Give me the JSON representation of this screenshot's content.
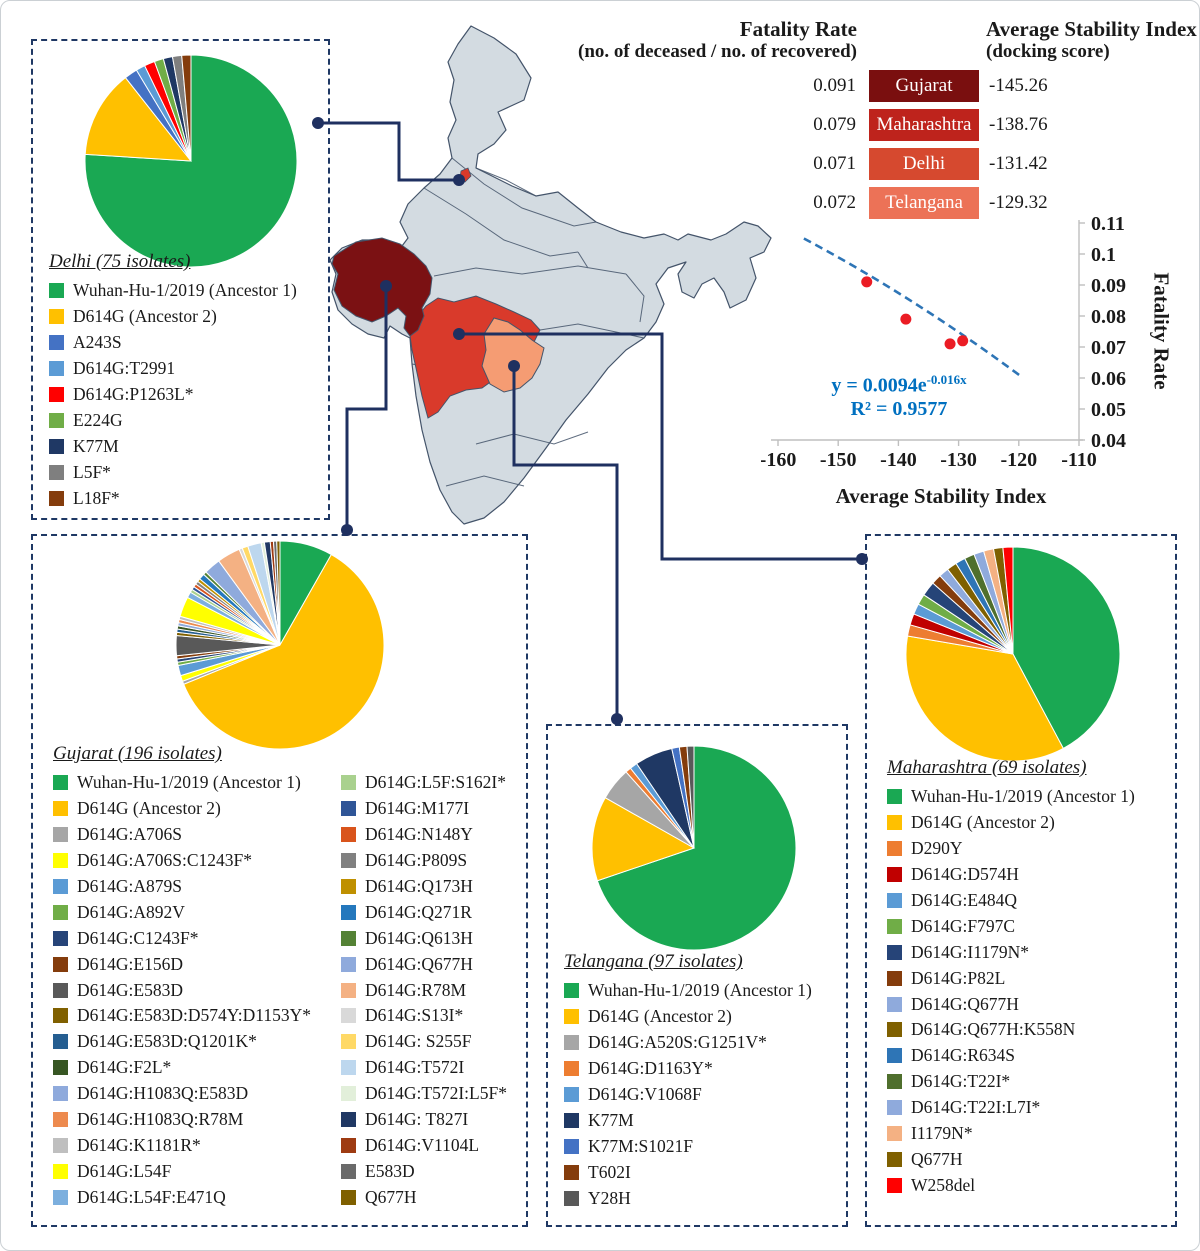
{
  "colors": {
    "box_dash": "#1f3864",
    "connector": "#1f3060",
    "equation_text": "#0070c0",
    "trend_line": "#2e75b6",
    "point_red": "#eb1c24",
    "axis_gray": "#bfbfbf",
    "text": "#1a1a1a"
  },
  "map": {
    "border_color": "#44546a",
    "state_colors": {
      "other": "#d3dbe1",
      "gujarat": "#7b1113",
      "maharashtra": "#d93a2b",
      "telangana": "#f59c73",
      "delhi": "#d93a2b"
    },
    "highlighted_states": [
      "Gujarat",
      "Maharashtra",
      "Delhi",
      "Telangana"
    ]
  },
  "table": {
    "col1_title": "Fatality Rate",
    "col1_subtitle": "(no. of deceased / no. of recovered)",
    "col2_title": "Average Stability Index",
    "col2_subtitle": "(docking score)",
    "rows": [
      {
        "fatality": "0.091",
        "state": "Gujarat",
        "stability": "-145.26",
        "chip_color": "#7a0f0f"
      },
      {
        "fatality": "0.079",
        "state": "Maharashtra",
        "stability": "-138.76",
        "chip_color": "#be231c"
      },
      {
        "fatality": "0.071",
        "state": "Delhi",
        "stability": "-131.42",
        "chip_color": "#d6492f"
      },
      {
        "fatality": "0.072",
        "state": "Telangana",
        "stability": "-129.32",
        "chip_color": "#ec7257"
      }
    ]
  },
  "chart_data": [
    {
      "type": "scatter",
      "name": "fatality_vs_stability",
      "xlabel": "Average Stability Index",
      "ylabel": "Fatality Rate",
      "xlim": [
        -160,
        -110
      ],
      "ylim": [
        0.04,
        0.11
      ],
      "x_ticks": [
        "-160",
        "-150",
        "-140",
        "-130",
        "-120",
        "-110"
      ],
      "y_ticks": [
        "0.11",
        "0.1",
        "0.09",
        "0.08",
        "0.07",
        "0.06",
        "0.05",
        "0.04"
      ],
      "grid": false,
      "legend_position": "none",
      "point_color": "#eb1c24",
      "points": [
        {
          "x": -145.26,
          "y": 0.091,
          "label": "Gujarat"
        },
        {
          "x": -138.76,
          "y": 0.079,
          "label": "Maharashtra"
        },
        {
          "x": -131.42,
          "y": 0.071,
          "label": "Delhi"
        },
        {
          "x": -129.32,
          "y": 0.072,
          "label": "Telangana"
        }
      ],
      "trendline": {
        "base": "y = 0.0094e",
        "exponent": "-0.016x",
        "r_squared": "R² = 0.9577",
        "style": "dashed",
        "color": "#2e75b6"
      },
      "trend_points": [
        {
          "x": -155.7,
          "y": 0.105
        },
        {
          "x": -137.6,
          "y": 0.0845
        },
        {
          "x": -119.6,
          "y": 0.0605
        }
      ]
    },
    {
      "type": "pie",
      "name": "delhi",
      "title": "Delhi (75 isolates)",
      "slices": [
        {
          "label": "Wuhan-Hu-1/2019 (Ancestor 1)",
          "color": "#1aa853",
          "value": 76.0
        },
        {
          "label": "D614G (Ancestor 2)",
          "color": "#ffc000",
          "value": 13.4
        },
        {
          "label": "A243S",
          "color": "#4472c4",
          "value": 2.0
        },
        {
          "label": "D614G:T2991",
          "color": "#5b9bd5",
          "value": 1.4
        },
        {
          "label": "D614G:P1263L*",
          "color": "#ff0000",
          "value": 1.6
        },
        {
          "label": "E224G",
          "color": "#70ad47",
          "value": 1.4
        },
        {
          "label": "K77M",
          "color": "#1f3864",
          "value": 1.4
        },
        {
          "label": "L5F*",
          "color": "#7f7f7f",
          "value": 1.4
        },
        {
          "label": "L18F*",
          "color": "#843c0c",
          "value": 1.4
        }
      ]
    },
    {
      "type": "pie",
      "name": "gujarat",
      "title": "Gujarat (196 isolates)",
      "slices": [
        {
          "label": "Wuhan-Hu-1/2019 (Ancestor 1)",
          "color": "#1aa853",
          "value": 8.2
        },
        {
          "label": "D614G (Ancestor 2)",
          "color": "#ffc000",
          "value": 60.5
        },
        {
          "label": "D614G:A706S",
          "color": "#a6a6a6",
          "value": 0.5
        },
        {
          "label": "D614G:A706S:C1243F*",
          "color": "#ffff00",
          "value": 0.9
        },
        {
          "label": "D614G:A879S",
          "color": "#5b9bd5",
          "value": 1.6
        },
        {
          "label": "D614G:A892V",
          "color": "#70ad47",
          "value": 0.5
        },
        {
          "label": "D614G:C1243F*",
          "color": "#264478",
          "value": 0.5
        },
        {
          "label": "D614G:E156D",
          "color": "#843c0c",
          "value": 0.5
        },
        {
          "label": "D614G:E583D",
          "color": "#595959",
          "value": 3.1
        },
        {
          "label": "D614G:E583D:D574Y:D1153Y*",
          "color": "#806000",
          "value": 0.5
        },
        {
          "label": "D614G:E583D:Q1201K*",
          "color": "#255e91",
          "value": 0.5
        },
        {
          "label": "D614G:F2L*",
          "color": "#375623",
          "value": 0.5
        },
        {
          "label": "D614G:H1083Q:E583D",
          "color": "#8faadc",
          "value": 0.5
        },
        {
          "label": "D614G:H1083Q:R78M",
          "color": "#ed8a4e",
          "value": 0.5
        },
        {
          "label": "D614G:K1181R*",
          "color": "#bfbfbf",
          "value": 0.5
        },
        {
          "label": "D614G:L54F",
          "color": "#ffff00",
          "value": 3.1
        },
        {
          "label": "D614G:L54F:E471Q",
          "color": "#7cafde",
          "value": 0.9
        },
        {
          "label": "D614G:L5F:S162I*",
          "color": "#a9d18e",
          "value": 0.5
        },
        {
          "label": "D614G:M177I",
          "color": "#2f5597",
          "value": 0.5
        },
        {
          "label": "D614G:N148Y",
          "color": "#d9541c",
          "value": 0.5
        },
        {
          "label": "D614G:P809S",
          "color": "#808080",
          "value": 0.5
        },
        {
          "label": "D614G:Q173H",
          "color": "#bf9000",
          "value": 0.5
        },
        {
          "label": "D614G:Q271R",
          "color": "#2478bd",
          "value": 0.9
        },
        {
          "label": "D614G:Q613H",
          "color": "#548235",
          "value": 0.5
        },
        {
          "label": "D614G:Q677H",
          "color": "#8faadc",
          "value": 2.6
        },
        {
          "label": "D614G:R78M",
          "color": "#f4b183",
          "value": 3.6
        },
        {
          "label": "D614G:S13I*",
          "color": "#d9d9d9",
          "value": 0.5
        },
        {
          "label": "D614G: S255F",
          "color": "#ffd966",
          "value": 0.9
        },
        {
          "label": "D614G:T572I",
          "color": "#bdd7ee",
          "value": 2.1
        },
        {
          "label": "D614G:T572I:L5F*",
          "color": "#e2efda",
          "value": 0.5
        },
        {
          "label": "D614G: T827I",
          "color": "#203864",
          "value": 0.9
        },
        {
          "label": "D614G:V1104L",
          "color": "#9e3b12",
          "value": 0.5
        },
        {
          "label": "E583D",
          "color": "#6a6a6a",
          "value": 0.5
        },
        {
          "label": "Q677H",
          "color": "#7f6000",
          "value": 0.5
        }
      ]
    },
    {
      "type": "pie",
      "name": "telangana",
      "title": "Telangana (97 isolates)",
      "slices": [
        {
          "label": "Wuhan-Hu-1/2019 (Ancestor 1)",
          "color": "#1aa853",
          "value": 69.8
        },
        {
          "label": "D614G (Ancestor 2)",
          "color": "#ffc000",
          "value": 13.4
        },
        {
          "label": "D614G:A520S:G1251V*",
          "color": "#a6a6a6",
          "value": 5.2
        },
        {
          "label": "D614G:D1163Y*",
          "color": "#ed7d31",
          "value": 0.9
        },
        {
          "label": "D614G:V1068F",
          "color": "#5b9bd5",
          "value": 1.2
        },
        {
          "label": "K77M",
          "color": "#1f3864",
          "value": 6.0
        },
        {
          "label": "K77M:S1021F",
          "color": "#4472c4",
          "value": 1.2
        },
        {
          "label": "T602I",
          "color": "#843c0c",
          "value": 1.2
        },
        {
          "label": "Y28H",
          "color": "#595959",
          "value": 1.1
        }
      ]
    },
    {
      "type": "pie",
      "name": "maharashtra",
      "title": "Maharashtra (69 isolates)",
      "slices": [
        {
          "label": "Wuhan-Hu-1/2019 (Ancestor 1)",
          "color": "#1aa853",
          "value": 42.0
        },
        {
          "label": "D614G (Ancestor 2)",
          "color": "#ffc000",
          "value": 35.3
        },
        {
          "label": "D290Y",
          "color": "#ed7d31",
          "value": 1.7
        },
        {
          "label": "D614G:D574H",
          "color": "#c00000",
          "value": 1.7
        },
        {
          "label": "D614G:E484Q",
          "color": "#5b9bd5",
          "value": 1.6
        },
        {
          "label": "D614G:F797C",
          "color": "#70ad47",
          "value": 1.6
        },
        {
          "label": "D614G:I1179N*",
          "color": "#264478",
          "value": 2.2
        },
        {
          "label": "D614G:P82L",
          "color": "#843c0c",
          "value": 1.5
        },
        {
          "label": "D614G:Q677H",
          "color": "#8faadc",
          "value": 1.5
        },
        {
          "label": "D614G:Q677H:K558N",
          "color": "#7f6000",
          "value": 1.5
        },
        {
          "label": "D614G:R634S",
          "color": "#2e75b6",
          "value": 1.5
        },
        {
          "label": "D614G:T22I*",
          "color": "#4f6f2d",
          "value": 1.5
        },
        {
          "label": "D614G:T22I:L7I*",
          "color": "#8faadc",
          "value": 1.5
        },
        {
          "label": "I1179N*",
          "color": "#f4b183",
          "value": 1.5
        },
        {
          "label": "Q677H",
          "color": "#7f6000",
          "value": 1.4
        },
        {
          "label": "W258del",
          "color": "#ff0000",
          "value": 1.5
        }
      ]
    }
  ]
}
